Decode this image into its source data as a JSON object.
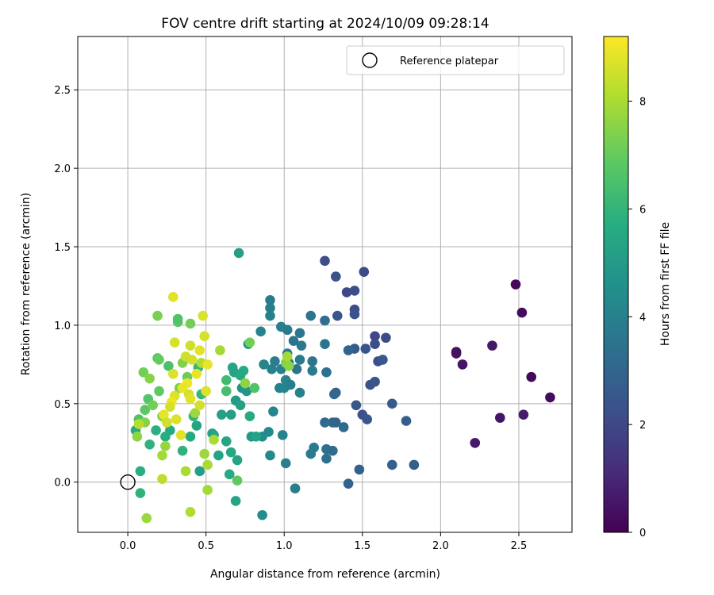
{
  "chart_data": {
    "type": "scatter",
    "title": "FOV centre drift starting at 2024/10/09 09:28:14",
    "xlabel": "Angular distance from reference (arcmin)",
    "ylabel": "Rotation from reference (arcmin)",
    "xlim": [
      -0.32,
      2.84
    ],
    "ylim": [
      -0.32,
      2.84
    ],
    "xticks": [
      0.0,
      0.5,
      1.0,
      1.5,
      2.0,
      2.5
    ],
    "yticks": [
      0.0,
      0.5,
      1.0,
      1.5,
      2.0,
      2.5
    ],
    "xtick_labels": [
      "0.0",
      "0.5",
      "1.0",
      "1.5",
      "2.0",
      "2.5"
    ],
    "ytick_labels": [
      "0.0",
      "0.5",
      "1.0",
      "1.5",
      "2.0",
      "2.5"
    ],
    "grid": true,
    "colormap": "viridis",
    "colorbar": {
      "label": "Hours from first FF file",
      "range": [
        0,
        9.2
      ],
      "ticks": [
        0,
        2,
        4,
        6,
        8
      ],
      "tick_labels": [
        "0",
        "2",
        "4",
        "6",
        "8"
      ]
    },
    "legend": {
      "position": "top-right",
      "entries": [
        "Reference platepar"
      ]
    },
    "reference_point": {
      "x": 0.0,
      "y": 0.0
    },
    "points": [
      {
        "x": 2.48,
        "y": 1.26,
        "hours": 0.2
      },
      {
        "x": 2.52,
        "y": 1.08,
        "hours": 0.3
      },
      {
        "x": 2.1,
        "y": 0.83,
        "hours": 0.4
      },
      {
        "x": 2.1,
        "y": 0.82,
        "hours": 0.45
      },
      {
        "x": 2.14,
        "y": 0.75,
        "hours": 0.5
      },
      {
        "x": 2.33,
        "y": 0.87,
        "hours": 0.6
      },
      {
        "x": 2.58,
        "y": 0.67,
        "hours": 0.2
      },
      {
        "x": 2.7,
        "y": 0.54,
        "hours": 0.25
      },
      {
        "x": 2.38,
        "y": 0.41,
        "hours": 0.55
      },
      {
        "x": 2.53,
        "y": 0.43,
        "hours": 0.7
      },
      {
        "x": 2.22,
        "y": 0.25,
        "hours": 0.6
      },
      {
        "x": 1.26,
        "y": 1.41,
        "hours": 2.2
      },
      {
        "x": 1.33,
        "y": 1.31,
        "hours": 2.3
      },
      {
        "x": 1.51,
        "y": 1.34,
        "hours": 2.1
      },
      {
        "x": 1.4,
        "y": 1.21,
        "hours": 2.0
      },
      {
        "x": 1.45,
        "y": 1.22,
        "hours": 2.2
      },
      {
        "x": 1.45,
        "y": 1.1,
        "hours": 2.1
      },
      {
        "x": 1.45,
        "y": 1.07,
        "hours": 2.3
      },
      {
        "x": 1.34,
        "y": 1.06,
        "hours": 2.4
      },
      {
        "x": 1.58,
        "y": 0.93,
        "hours": 2.0
      },
      {
        "x": 1.65,
        "y": 0.92,
        "hours": 2.1
      },
      {
        "x": 1.58,
        "y": 0.88,
        "hours": 2.2
      },
      {
        "x": 1.52,
        "y": 0.85,
        "hours": 2.4
      },
      {
        "x": 1.45,
        "y": 0.85,
        "hours": 2.6
      },
      {
        "x": 1.41,
        "y": 0.84,
        "hours": 3.0
      },
      {
        "x": 1.6,
        "y": 0.77,
        "hours": 2.2
      },
      {
        "x": 1.63,
        "y": 0.78,
        "hours": 2.5
      },
      {
        "x": 1.55,
        "y": 0.62,
        "hours": 2.3
      },
      {
        "x": 1.58,
        "y": 0.64,
        "hours": 2.4
      },
      {
        "x": 1.69,
        "y": 0.5,
        "hours": 2.6
      },
      {
        "x": 1.46,
        "y": 0.49,
        "hours": 2.5
      },
      {
        "x": 1.5,
        "y": 0.43,
        "hours": 2.3
      },
      {
        "x": 1.53,
        "y": 0.4,
        "hours": 2.5
      },
      {
        "x": 1.78,
        "y": 0.39,
        "hours": 2.7
      },
      {
        "x": 1.69,
        "y": 0.11,
        "hours": 2.8
      },
      {
        "x": 1.83,
        "y": 0.11,
        "hours": 2.7
      },
      {
        "x": 1.48,
        "y": 0.08,
        "hours": 2.8
      },
      {
        "x": 1.41,
        "y": -0.01,
        "hours": 2.9
      },
      {
        "x": 1.33,
        "y": 0.57,
        "hours": 3.0
      },
      {
        "x": 1.32,
        "y": 0.56,
        "hours": 3.1
      },
      {
        "x": 1.26,
        "y": 0.38,
        "hours": 3.1
      },
      {
        "x": 1.31,
        "y": 0.38,
        "hours": 3.2
      },
      {
        "x": 1.33,
        "y": 0.38,
        "hours": 3.0
      },
      {
        "x": 1.38,
        "y": 0.35,
        "hours": 3.2
      },
      {
        "x": 1.27,
        "y": 0.21,
        "hours": 3.3
      },
      {
        "x": 1.31,
        "y": 0.2,
        "hours": 3.2
      },
      {
        "x": 1.27,
        "y": 0.15,
        "hours": 3.4
      },
      {
        "x": 1.26,
        "y": 1.03,
        "hours": 3.3
      },
      {
        "x": 1.26,
        "y": 0.88,
        "hours": 3.6
      },
      {
        "x": 1.27,
        "y": 0.7,
        "hours": 3.4
      },
      {
        "x": 1.17,
        "y": 1.06,
        "hours": 3.5
      },
      {
        "x": 1.1,
        "y": 0.95,
        "hours": 3.6
      },
      {
        "x": 1.06,
        "y": 0.9,
        "hours": 3.5
      },
      {
        "x": 1.11,
        "y": 0.87,
        "hours": 3.7
      },
      {
        "x": 1.18,
        "y": 0.77,
        "hours": 3.6
      },
      {
        "x": 1.18,
        "y": 0.71,
        "hours": 3.8
      },
      {
        "x": 1.1,
        "y": 0.78,
        "hours": 3.7
      },
      {
        "x": 1.08,
        "y": 0.72,
        "hours": 3.5
      },
      {
        "x": 1.03,
        "y": 0.76,
        "hours": 3.6
      },
      {
        "x": 1.02,
        "y": 0.82,
        "hours": 3.8
      },
      {
        "x": 1.02,
        "y": 0.97,
        "hours": 3.7
      },
      {
        "x": 0.98,
        "y": 0.99,
        "hours": 3.9
      },
      {
        "x": 0.91,
        "y": 1.16,
        "hours": 3.8
      },
      {
        "x": 0.91,
        "y": 1.11,
        "hours": 3.9
      },
      {
        "x": 0.91,
        "y": 1.06,
        "hours": 4.0
      },
      {
        "x": 0.85,
        "y": 0.96,
        "hours": 4.1
      },
      {
        "x": 0.94,
        "y": 0.77,
        "hours": 3.9
      },
      {
        "x": 0.92,
        "y": 0.72,
        "hours": 4.0
      },
      {
        "x": 0.87,
        "y": 0.75,
        "hours": 4.1
      },
      {
        "x": 0.98,
        "y": 0.72,
        "hours": 4.0
      },
      {
        "x": 1.01,
        "y": 0.65,
        "hours": 4.1
      },
      {
        "x": 0.97,
        "y": 0.6,
        "hours": 4.0
      },
      {
        "x": 1.0,
        "y": 0.6,
        "hours": 4.2
      },
      {
        "x": 1.04,
        "y": 0.62,
        "hours": 3.9
      },
      {
        "x": 1.1,
        "y": 0.57,
        "hours": 4.0
      },
      {
        "x": 1.19,
        "y": 0.22,
        "hours": 3.7
      },
      {
        "x": 1.17,
        "y": 0.18,
        "hours": 3.8
      },
      {
        "x": 1.07,
        "y": -0.04,
        "hours": 3.9
      },
      {
        "x": 1.01,
        "y": 0.12,
        "hours": 4.0
      },
      {
        "x": 0.99,
        "y": 0.3,
        "hours": 4.1
      },
      {
        "x": 0.93,
        "y": 0.45,
        "hours": 4.2
      },
      {
        "x": 0.9,
        "y": 0.32,
        "hours": 4.3
      },
      {
        "x": 0.86,
        "y": 0.29,
        "hours": 4.4
      },
      {
        "x": 0.91,
        "y": 0.17,
        "hours": 4.3
      },
      {
        "x": 0.86,
        "y": -0.21,
        "hours": 4.5
      },
      {
        "x": 0.73,
        "y": 0.6,
        "hours": 4.6
      },
      {
        "x": 0.76,
        "y": 0.58,
        "hours": 4.8
      },
      {
        "x": 0.77,
        "y": 0.88,
        "hours": 4.7
      },
      {
        "x": 0.79,
        "y": 0.29,
        "hours": 4.9
      },
      {
        "x": 0.71,
        "y": 1.46,
        "hours": 5.2
      },
      {
        "x": 0.69,
        "y": 0.52,
        "hours": 5.0
      },
      {
        "x": 0.66,
        "y": 0.43,
        "hours": 5.1
      },
      {
        "x": 0.72,
        "y": 0.49,
        "hours": 5.2
      },
      {
        "x": 0.67,
        "y": 0.73,
        "hours": 5.3
      },
      {
        "x": 0.68,
        "y": 0.7,
        "hours": 5.4
      },
      {
        "x": 0.72,
        "y": 0.68,
        "hours": 5.5
      },
      {
        "x": 0.74,
        "y": 0.71,
        "hours": 5.6
      },
      {
        "x": 0.78,
        "y": 0.42,
        "hours": 5.6
      },
      {
        "x": 0.82,
        "y": 0.29,
        "hours": 5.3
      },
      {
        "x": 0.63,
        "y": 0.26,
        "hours": 5.4
      },
      {
        "x": 0.7,
        "y": 0.14,
        "hours": 5.3
      },
      {
        "x": 0.66,
        "y": 0.19,
        "hours": 5.5
      },
      {
        "x": 0.69,
        "y": -0.12,
        "hours": 5.4
      },
      {
        "x": 0.65,
        "y": 0.05,
        "hours": 5.6
      },
      {
        "x": 0.6,
        "y": 0.43,
        "hours": 5.2
      },
      {
        "x": 0.58,
        "y": 0.17,
        "hours": 5.3
      },
      {
        "x": 0.54,
        "y": 0.31,
        "hours": 5.2
      },
      {
        "x": 0.55,
        "y": 0.3,
        "hours": 5.4
      },
      {
        "x": 0.46,
        "y": 0.07,
        "hours": 5.1
      },
      {
        "x": 0.44,
        "y": 0.36,
        "hours": 5.3
      },
      {
        "x": 0.4,
        "y": 0.29,
        "hours": 5.5
      },
      {
        "x": 0.27,
        "y": 0.33,
        "hours": 5.6
      },
      {
        "x": 0.24,
        "y": 0.29,
        "hours": 5.7
      },
      {
        "x": 0.18,
        "y": 0.33,
        "hours": 5.8
      },
      {
        "x": 0.14,
        "y": 0.24,
        "hours": 5.9
      },
      {
        "x": 0.05,
        "y": 0.33,
        "hours": 5.6
      },
      {
        "x": 0.08,
        "y": 0.07,
        "hours": 5.8
      },
      {
        "x": 0.08,
        "y": -0.07,
        "hours": 5.9
      },
      {
        "x": 0.35,
        "y": 0.2,
        "hours": 5.9
      },
      {
        "x": 0.42,
        "y": 0.42,
        "hours": 6.0
      },
      {
        "x": 0.47,
        "y": 0.56,
        "hours": 6.1
      },
      {
        "x": 0.45,
        "y": 0.73,
        "hours": 6.0
      },
      {
        "x": 0.63,
        "y": 0.65,
        "hours": 6.3
      },
      {
        "x": 0.63,
        "y": 0.58,
        "hours": 6.4
      },
      {
        "x": 0.81,
        "y": 0.6,
        "hours": 6.6
      },
      {
        "x": 0.7,
        "y": 0.01,
        "hours": 6.9
      },
      {
        "x": 0.78,
        "y": 0.89,
        "hours": 7.2
      },
      {
        "x": 0.75,
        "y": 0.63,
        "hours": 7.6
      },
      {
        "x": 1.01,
        "y": 0.76,
        "hours": 7.4
      },
      {
        "x": 1.03,
        "y": 0.74,
        "hours": 7.6
      },
      {
        "x": 1.02,
        "y": 0.8,
        "hours": 7.9
      },
      {
        "x": 0.32,
        "y": 1.02,
        "hours": 6.8
      },
      {
        "x": 0.32,
        "y": 1.04,
        "hours": 6.6
      },
      {
        "x": 0.26,
        "y": 0.74,
        "hours": 6.5
      },
      {
        "x": 0.19,
        "y": 0.79,
        "hours": 6.8
      },
      {
        "x": 0.2,
        "y": 0.78,
        "hours": 7.0
      },
      {
        "x": 0.2,
        "y": 0.58,
        "hours": 6.9
      },
      {
        "x": 0.13,
        "y": 0.53,
        "hours": 6.7
      },
      {
        "x": 0.11,
        "y": 0.46,
        "hours": 6.8
      },
      {
        "x": 0.07,
        "y": 0.4,
        "hours": 6.6
      },
      {
        "x": 0.1,
        "y": 0.7,
        "hours": 7.2
      },
      {
        "x": 0.14,
        "y": 0.66,
        "hours": 7.5
      },
      {
        "x": 0.19,
        "y": 1.06,
        "hours": 7.3
      },
      {
        "x": 0.4,
        "y": 1.01,
        "hours": 7.2
      },
      {
        "x": 0.33,
        "y": 0.6,
        "hours": 7.3
      },
      {
        "x": 0.38,
        "y": 0.67,
        "hours": 7.1
      },
      {
        "x": 0.35,
        "y": 0.76,
        "hours": 7.4
      },
      {
        "x": 0.16,
        "y": 0.49,
        "hours": 7.2
      },
      {
        "x": 0.22,
        "y": 0.42,
        "hours": 7.4
      },
      {
        "x": 0.11,
        "y": 0.38,
        "hours": 7.5
      },
      {
        "x": 0.06,
        "y": 0.29,
        "hours": 7.6
      },
      {
        "x": 0.24,
        "y": 0.23,
        "hours": 7.7
      },
      {
        "x": 0.12,
        "y": -0.23,
        "hours": 7.8
      },
      {
        "x": 0.22,
        "y": 0.17,
        "hours": 7.9
      },
      {
        "x": 0.37,
        "y": 0.07,
        "hours": 8.0
      },
      {
        "x": 0.4,
        "y": -0.19,
        "hours": 8.1
      },
      {
        "x": 0.51,
        "y": -0.05,
        "hours": 7.9
      },
      {
        "x": 0.51,
        "y": 0.11,
        "hours": 8.0
      },
      {
        "x": 0.49,
        "y": 0.18,
        "hours": 7.8
      },
      {
        "x": 0.55,
        "y": 0.27,
        "hours": 8.0
      },
      {
        "x": 0.59,
        "y": 0.84,
        "hours": 7.9
      },
      {
        "x": 0.43,
        "y": 0.44,
        "hours": 7.8
      },
      {
        "x": 0.47,
        "y": 0.76,
        "hours": 8.1
      },
      {
        "x": 0.49,
        "y": 0.93,
        "hours": 8.6
      },
      {
        "x": 0.48,
        "y": 1.06,
        "hours": 8.7
      },
      {
        "x": 0.29,
        "y": 1.18,
        "hours": 8.8
      },
      {
        "x": 0.3,
        "y": 0.89,
        "hours": 8.6
      },
      {
        "x": 0.4,
        "y": 0.87,
        "hours": 8.5
      },
      {
        "x": 0.46,
        "y": 0.84,
        "hours": 8.8
      },
      {
        "x": 0.44,
        "y": 0.69,
        "hours": 8.9
      },
      {
        "x": 0.41,
        "y": 0.78,
        "hours": 8.6
      },
      {
        "x": 0.37,
        "y": 0.8,
        "hours": 8.5
      },
      {
        "x": 0.29,
        "y": 0.69,
        "hours": 8.7
      },
      {
        "x": 0.38,
        "y": 0.63,
        "hours": 9.0
      },
      {
        "x": 0.35,
        "y": 0.6,
        "hours": 8.9
      },
      {
        "x": 0.39,
        "y": 0.56,
        "hours": 8.6
      },
      {
        "x": 0.4,
        "y": 0.53,
        "hours": 8.8
      },
      {
        "x": 0.3,
        "y": 0.55,
        "hours": 8.7
      },
      {
        "x": 0.28,
        "y": 0.51,
        "hours": 9.0
      },
      {
        "x": 0.27,
        "y": 0.48,
        "hours": 8.6
      },
      {
        "x": 0.23,
        "y": 0.43,
        "hours": 8.9
      },
      {
        "x": 0.31,
        "y": 0.4,
        "hours": 8.7
      },
      {
        "x": 0.34,
        "y": 0.3,
        "hours": 8.8
      },
      {
        "x": 0.25,
        "y": 0.38,
        "hours": 8.5
      },
      {
        "x": 0.46,
        "y": 0.49,
        "hours": 8.6
      },
      {
        "x": 0.5,
        "y": 0.58,
        "hours": 8.7
      },
      {
        "x": 0.51,
        "y": 0.75,
        "hours": 8.9
      },
      {
        "x": 0.22,
        "y": 0.02,
        "hours": 8.3
      },
      {
        "x": 0.07,
        "y": 0.37,
        "hours": 8.2
      }
    ]
  }
}
